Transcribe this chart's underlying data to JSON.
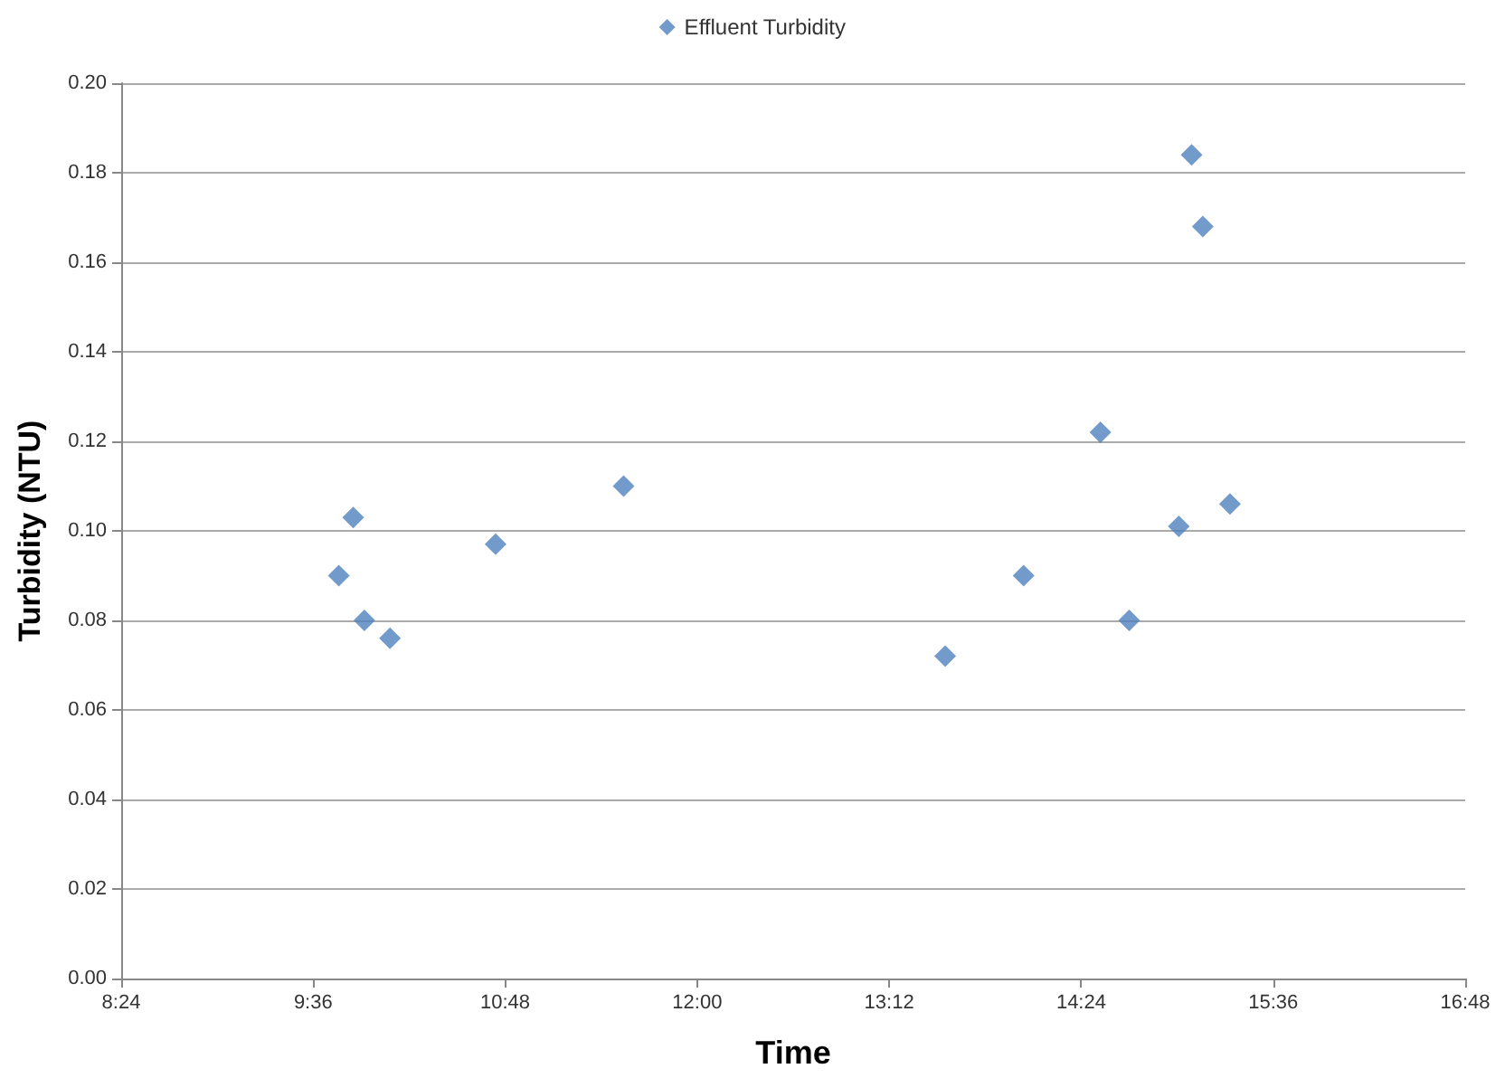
{
  "chart_data": {
    "type": "scatter",
    "xlabel": "Time",
    "ylabel": "Turbidity (NTU)",
    "x": [
      9.76,
      9.85,
      9.92,
      10.08,
      10.74,
      11.54,
      13.55,
      14.04,
      14.52,
      14.7,
      15.01,
      15.09,
      15.16,
      15.33
    ],
    "series": [
      {
        "name": "Effluent Turbidity",
        "color": "#4f81bd",
        "values": [
          0.09,
          0.103,
          0.08,
          0.076,
          0.097,
          0.11,
          0.072,
          0.09,
          0.122,
          0.08,
          0.101,
          0.184,
          0.168,
          0.106
        ]
      }
    ],
    "xlim": [
      8.4,
      16.8
    ],
    "xticks": [
      {
        "value": 8.4,
        "label": "8:24"
      },
      {
        "value": 9.6,
        "label": "9:36"
      },
      {
        "value": 10.8,
        "label": "10:48"
      },
      {
        "value": 12,
        "label": "12:00"
      },
      {
        "value": 13.2,
        "label": "13:12"
      },
      {
        "value": 14.4,
        "label": "14:24"
      },
      {
        "value": 15.6,
        "label": "15:36"
      },
      {
        "value": 16.8,
        "label": "16:48"
      }
    ],
    "ylim": [
      0,
      0.2
    ],
    "yticks": [
      {
        "value": 0,
        "label": "0.00"
      },
      {
        "value": 0.02,
        "label": "0.02"
      },
      {
        "value": 0.04,
        "label": "0.04"
      },
      {
        "value": 0.06,
        "label": "0.06"
      },
      {
        "value": 0.08,
        "label": "0.08"
      },
      {
        "value": 0.1,
        "label": "0.10"
      },
      {
        "value": 0.12,
        "label": "0.12"
      },
      {
        "value": 0.14,
        "label": "0.14"
      },
      {
        "value": 0.16,
        "label": "0.16"
      },
      {
        "value": 0.18,
        "label": "0.18"
      },
      {
        "value": 0.2,
        "label": "0.20"
      }
    ],
    "grid": "y",
    "legend": "top",
    "marker": "diamond"
  }
}
